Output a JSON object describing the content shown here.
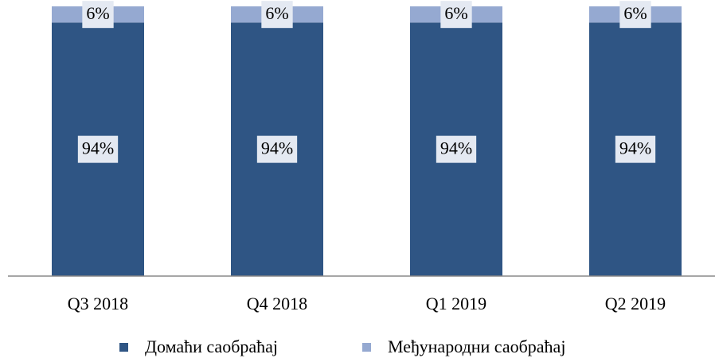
{
  "chart_data": {
    "type": "stacked_bar",
    "categories": [
      "Q3 2018",
      "Q4 2018",
      "Q1 2019",
      "Q2 2019"
    ],
    "series": [
      {
        "name": "Домаћи саобраћај",
        "color": "#2f5584",
        "values": [
          94,
          94,
          94,
          94
        ],
        "value_labels": [
          "94%",
          "94%",
          "94%",
          "94%"
        ]
      },
      {
        "name": "Међународни саобраћај",
        "color": "#95a9d1",
        "values": [
          6,
          6,
          6,
          6
        ],
        "value_labels": [
          "6%",
          "6%",
          "6%",
          "6%"
        ]
      }
    ]
  }
}
